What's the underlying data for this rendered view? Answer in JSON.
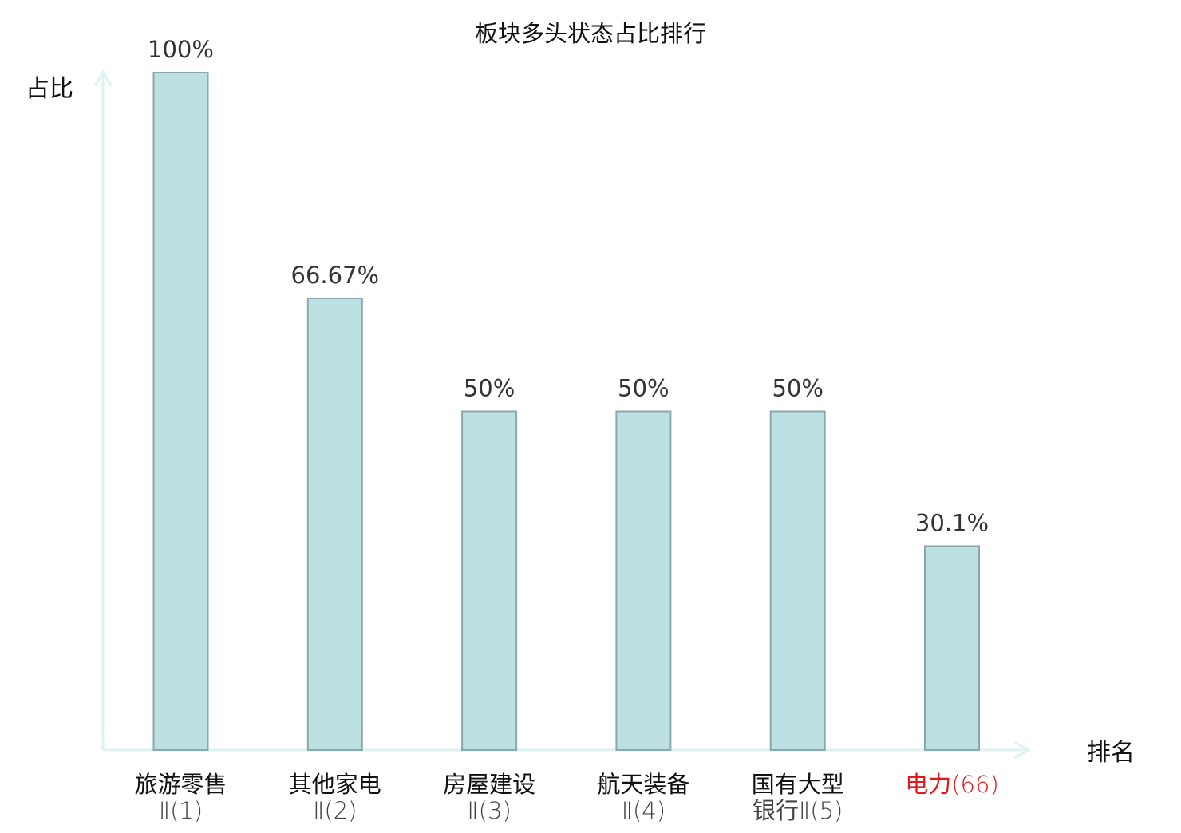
{
  "chart_data": {
    "type": "bar",
    "title": "板块多头状态占比排行",
    "ylabel": "占比",
    "xlabel": "排名",
    "ylim": [
      0,
      100
    ],
    "grid": false,
    "categories": [
      {
        "name": "旅游零售",
        "rank": "Ⅱ(1)"
      },
      {
        "name": "其他家电",
        "rank": "Ⅱ(2)"
      },
      {
        "name": "房屋建设",
        "rank": "Ⅱ(3)"
      },
      {
        "name": "航天装备",
        "rank": "Ⅱ(4)"
      },
      {
        "name": "国有大型",
        "rank": "银行Ⅱ(5)"
      },
      {
        "name": "电力",
        "rank": "(66)"
      }
    ],
    "values": [
      100,
      66.67,
      50,
      50,
      50,
      30.1
    ],
    "value_labels": [
      "100%",
      "66.67%",
      "50%",
      "50%",
      "50%",
      "30.1%"
    ],
    "highlight_index": 5,
    "colors": {
      "bar_fill": "#bde0e3",
      "bar_stroke": "#8aa9ad",
      "axis": "#dff2f0",
      "text": "#333333",
      "label_text": "#111111",
      "highlight": "#e0191c"
    }
  }
}
